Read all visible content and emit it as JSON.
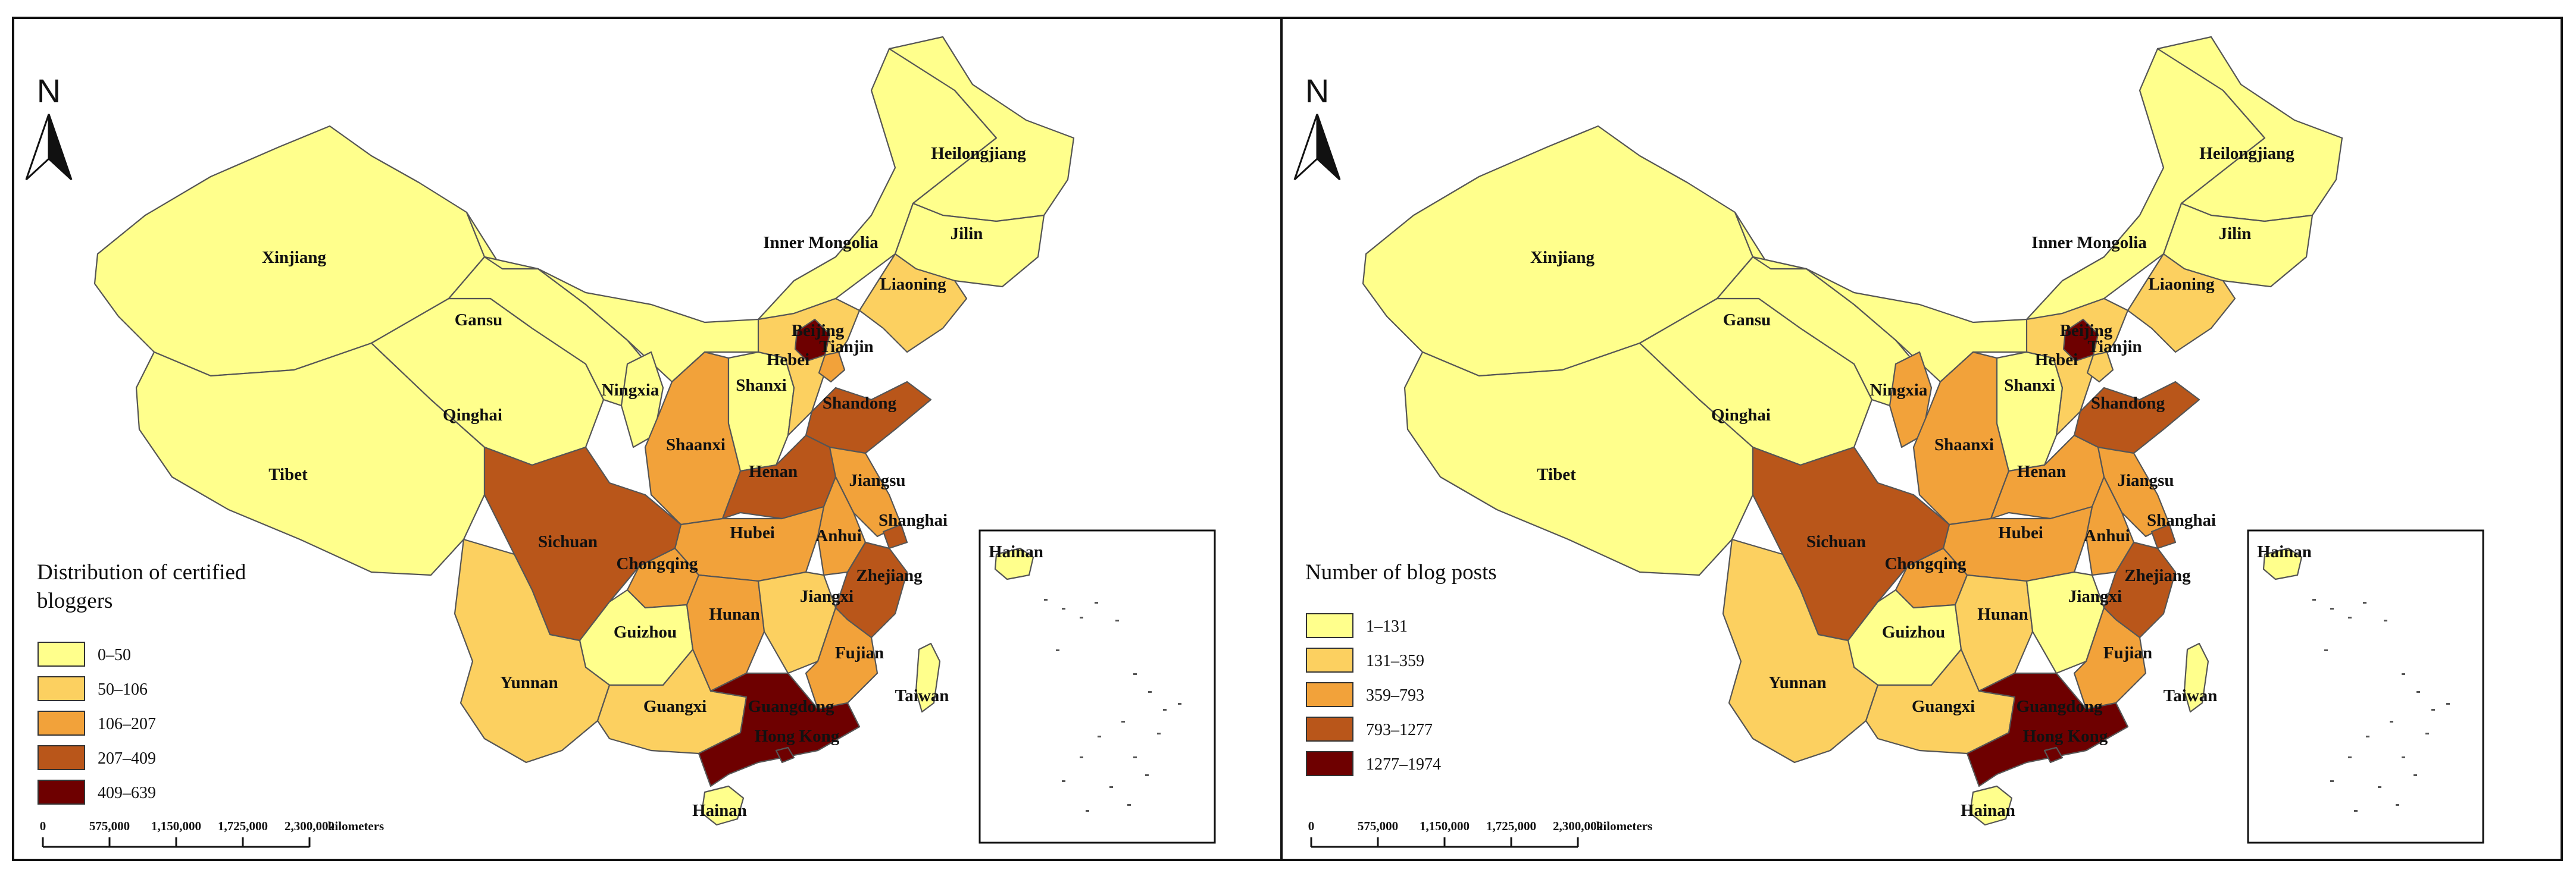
{
  "colors": {
    "c1": "#ffff8c",
    "c2": "#fcd060",
    "c3": "#f2a23a",
    "c4": "#b9561a",
    "c5": "#6e0000",
    "border": "#555555",
    "frame": "#111111"
  },
  "north_label": "N",
  "scale": {
    "ticks": [
      "0",
      "575,000",
      "1,150,000",
      "1,725,000",
      "2,300,000"
    ],
    "unit": "kilometers"
  },
  "maps": [
    {
      "legend_title_lines": [
        "Distribution of certified",
        "bloggers"
      ],
      "legend": [
        {
          "label": "0–50",
          "color": "c1"
        },
        {
          "label": "50–106",
          "color": "c2"
        },
        {
          "label": "106–207",
          "color": "c3"
        },
        {
          "label": "207–409",
          "color": "c4"
        },
        {
          "label": "409–639",
          "color": "c5"
        }
      ],
      "provinces": {
        "xinjiang": "c1",
        "tibet": "c1",
        "qinghai": "c1",
        "gansu": "c1",
        "inner_mongolia": "c1",
        "heilongjiang": "c1",
        "jilin": "c1",
        "liaoning": "c2",
        "ningxia": "c1",
        "shaanxi": "c3",
        "shanxi": "c1",
        "hebei": "c2",
        "beijing": "c5",
        "tianjin": "c3",
        "shandong": "c4",
        "henan": "c4",
        "jiangsu": "c3",
        "shanghai": "c4",
        "anhui": "c3",
        "hubei": "c3",
        "sichuan": "c4",
        "chongqing": "c3",
        "guizhou": "c1",
        "hunan": "c3",
        "jiangxi": "c2",
        "zhejiang": "c4",
        "fujian": "c3",
        "yunnan": "c2",
        "guangxi": "c2",
        "guangdong": "c5",
        "hong_kong": "c5",
        "hainan": "c1",
        "taiwan": "c1"
      }
    },
    {
      "legend_title_lines": [
        "Number of blog posts"
      ],
      "legend": [
        {
          "label": "1–131",
          "color": "c1"
        },
        {
          "label": "131–359",
          "color": "c2"
        },
        {
          "label": "359–793",
          "color": "c3"
        },
        {
          "label": "793–1277",
          "color": "c4"
        },
        {
          "label": "1277–1974",
          "color": "c5"
        }
      ],
      "provinces": {
        "xinjiang": "c1",
        "tibet": "c1",
        "qinghai": "c1",
        "gansu": "c1",
        "inner_mongolia": "c1",
        "heilongjiang": "c1",
        "jilin": "c1",
        "liaoning": "c2",
        "ningxia": "c3",
        "shaanxi": "c3",
        "shanxi": "c1",
        "hebei": "c2",
        "beijing": "c5",
        "tianjin": "c2",
        "shandong": "c4",
        "henan": "c3",
        "jiangsu": "c3",
        "shanghai": "c4",
        "anhui": "c3",
        "hubei": "c3",
        "sichuan": "c4",
        "chongqing": "c3",
        "guizhou": "c1",
        "hunan": "c2",
        "jiangxi": "c1",
        "zhejiang": "c4",
        "fujian": "c3",
        "yunnan": "c2",
        "guangxi": "c2",
        "guangdong": "c5",
        "hong_kong": "c5",
        "hainan": "c1",
        "taiwan": "c1"
      }
    }
  ],
  "labels": {
    "xinjiang": "Xinjiang",
    "tibet": "Tibet",
    "qinghai": "Qinghai",
    "gansu": "Gansu",
    "inner_mongolia": "Inner Mongolia",
    "heilongjiang": "Heilongjiang",
    "jilin": "Jilin",
    "liaoning": "Liaoning",
    "ningxia": "Ningxia",
    "shaanxi": "Shaanxi",
    "shanxi": "Shanxi",
    "hebei": "Hebei",
    "beijing": "Beijing",
    "tianjin": "Tianjin",
    "shandong": "Shandong",
    "henan": "Henan",
    "jiangsu": "Jiangsu",
    "shanghai": "Shanghai",
    "anhui": "Anhui",
    "hubei": "Hubei",
    "sichuan": "Sichuan",
    "chongqing": "Chongqing",
    "guizhou": "Guizhou",
    "hunan": "Hunan",
    "jiangxi": "Jiangxi",
    "zhejiang": "Zhejiang",
    "fujian": "Fujian",
    "yunnan": "Yunnan",
    "guangxi": "Guangxi",
    "guangdong": "Guangdong",
    "hong_kong": "Hong Kong",
    "hainan": "Hainan",
    "taiwan": "Taiwan"
  }
}
